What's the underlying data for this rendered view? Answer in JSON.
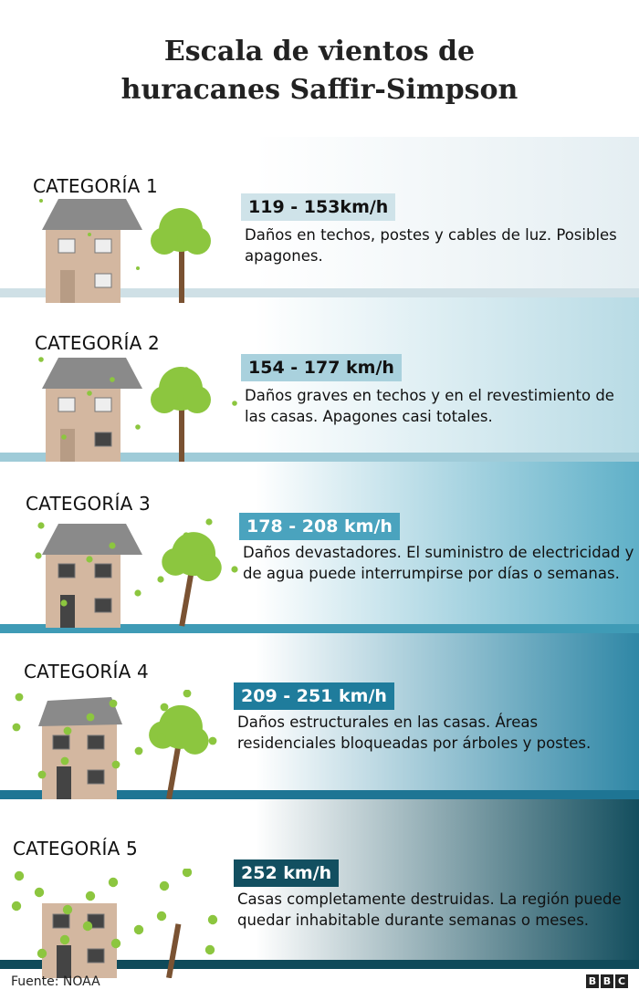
{
  "title_line1": "Escala de vientos de",
  "title_line2": "huracanes Saffir-Simpson",
  "categories": [
    {
      "label": "CATEGORÍA 1",
      "speed": "119 - 153km/h",
      "description": "Daños en techos, postes y cables de luz. Posibles apagones.",
      "badge_color": "#cfe3e9",
      "ground_color": "#cfe0e6",
      "text_color": "#111111"
    },
    {
      "label": "CATEGORÍA 2",
      "speed": "154 - 177 km/h",
      "description": "Daños graves en techos y en el revestimiento de las casas. Apagones casi totales.",
      "badge_color": "#a9d1dd",
      "ground_color": "#9fcbd8",
      "text_color": "#111111"
    },
    {
      "label": "CATEGORÍA 3",
      "speed": "178 - 208 km/h",
      "description": "Daños devastadores. El suministro de electricidad y de agua puede interrumpirse por días o semanas.",
      "badge_color": "#4aa3be",
      "ground_color": "#3f9bb6",
      "text_color": "#ffffff"
    },
    {
      "label": "CATEGORÍA 4",
      "speed": "209 - 251 km/h",
      "description": "Daños estructurales en las casas. Áreas residenciales bloqueadas por árboles y postes.",
      "badge_color": "#1f7c9c",
      "ground_color": "#1e7594",
      "text_color": "#ffffff"
    },
    {
      "label": "CATEGORÍA 5",
      "speed": "252 km/h",
      "description": "Casas completamente destruidas. La región puede quedar inhabitable durante semanas o meses.",
      "badge_color": "#124f60",
      "ground_color": "#0f4a5a",
      "text_color": "#ffffff"
    }
  ],
  "footer": {
    "source": "Fuente: NOAA",
    "logo": "BBC"
  },
  "colors": {
    "house_wall": "#d3b7a0",
    "roof": "#8a8a8a",
    "tree": "#8cc63f",
    "trunk": "#7a5232"
  }
}
